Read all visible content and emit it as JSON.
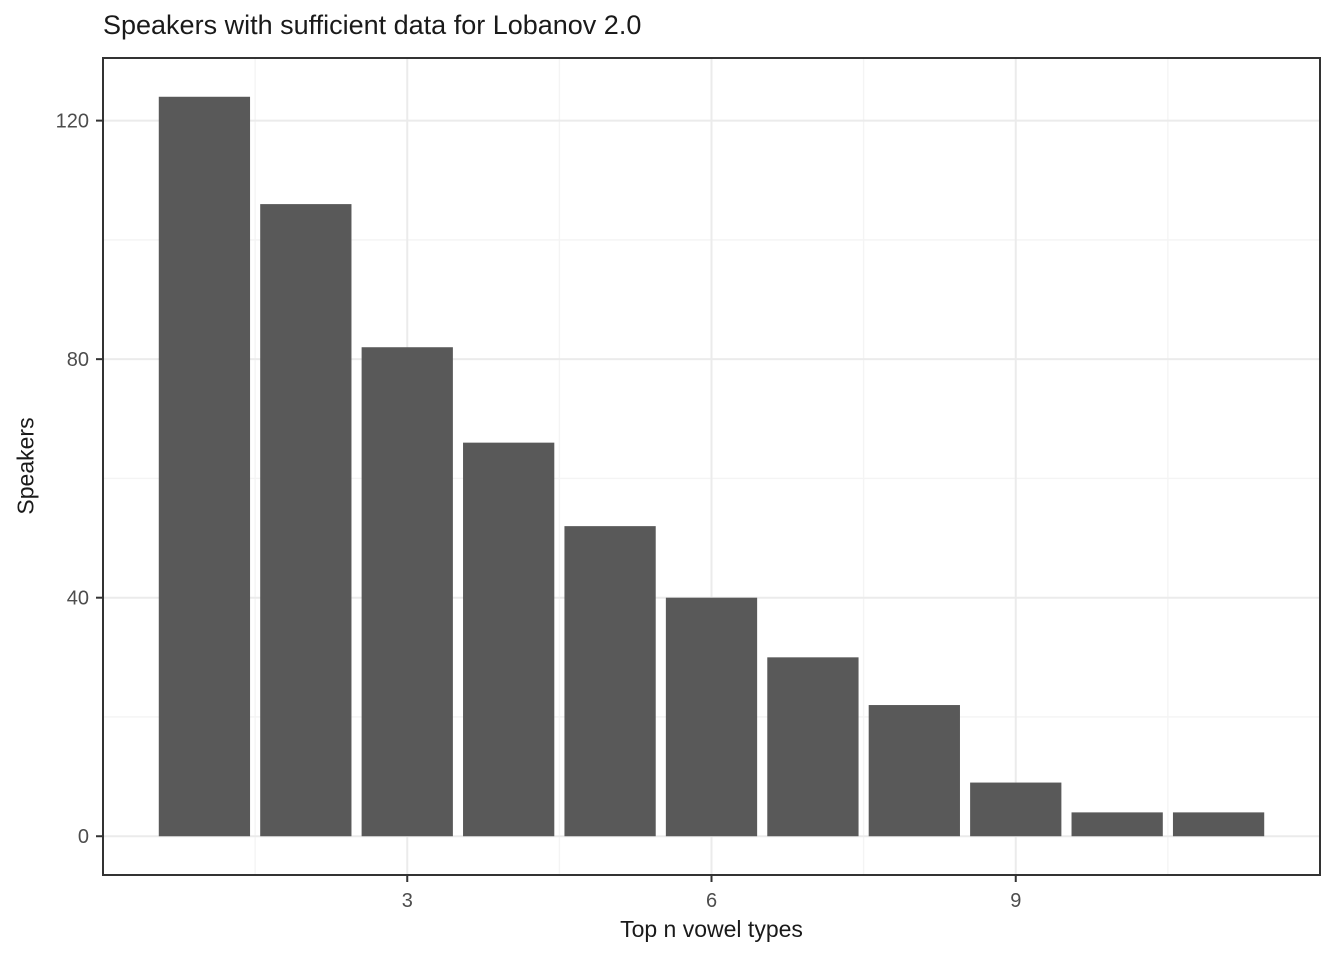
{
  "chart_data": {
    "type": "bar",
    "title": "Speakers with sufficient data for Lobanov 2.0",
    "xlabel": "Top n vowel types",
    "ylabel": "Speakers",
    "x": [
      1,
      2,
      3,
      4,
      5,
      6,
      7,
      8,
      9,
      10,
      11
    ],
    "values": [
      124,
      106,
      82,
      66,
      52,
      40,
      30,
      22,
      9,
      4,
      4
    ],
    "bar_width": 0.9,
    "bar_color": "#595959",
    "x_ticks": [
      3,
      6,
      9
    ],
    "y_ticks": [
      0,
      40,
      80,
      120
    ],
    "x_minor_gridlines": [
      1.5,
      4.5,
      7.5,
      10.5
    ],
    "y_minor_gridlines": [
      20,
      60,
      100
    ],
    "xlim": [
      0.0,
      12.0
    ],
    "ylim": [
      -6.5,
      130.5
    ],
    "grid": true,
    "legend": "none",
    "panel_border_color": "#333333",
    "grid_major_color": "#ebebeb",
    "grid_minor_color": "#f4f4f4",
    "tick_mark_color": "#333333",
    "tick_label_color": "#4d4d4d",
    "background_color": "#ffffff"
  }
}
